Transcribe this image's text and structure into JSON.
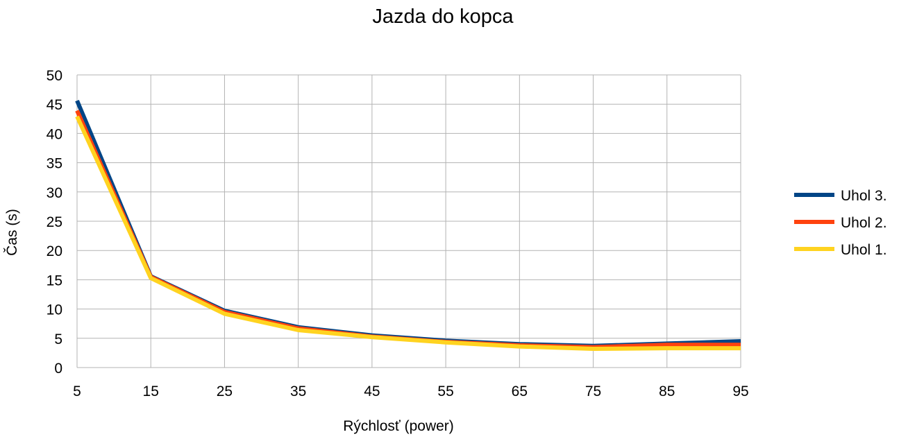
{
  "chart_data": {
    "type": "line",
    "title": "Jazda do kopca",
    "xlabel": "Rýchlosť (power)",
    "ylabel": "Čas (s)",
    "x": [
      5,
      15,
      25,
      35,
      45,
      55,
      65,
      75,
      85,
      95
    ],
    "x_tick_labels": [
      "5",
      "15",
      "25",
      "35",
      "45",
      "55",
      "65",
      "75",
      "85",
      "95"
    ],
    "ylim": [
      0,
      50
    ],
    "y_ticks": [
      0,
      5,
      10,
      15,
      20,
      25,
      30,
      35,
      40,
      45,
      50
    ],
    "y_tick_labels": [
      "0",
      "5",
      "10",
      "15",
      "20",
      "25",
      "30",
      "35",
      "40",
      "45",
      "50"
    ],
    "grid": true,
    "legend_position": "right",
    "series": [
      {
        "name": "Uhol 3.",
        "color": "#004586",
        "values": [
          45.6,
          15.6,
          9.7,
          6.9,
          5.5,
          4.6,
          4.0,
          3.7,
          4.1,
          4.5
        ]
      },
      {
        "name": "Uhol 2.",
        "color": "#ff420e",
        "values": [
          43.9,
          15.5,
          9.5,
          6.7,
          5.3,
          4.4,
          3.8,
          3.5,
          3.9,
          3.9
        ]
      },
      {
        "name": "Uhol 1.",
        "color": "#ffd320",
        "values": [
          42.9,
          15.3,
          9.2,
          6.4,
          5.2,
          4.3,
          3.6,
          3.2,
          3.3,
          3.3
        ]
      }
    ]
  }
}
